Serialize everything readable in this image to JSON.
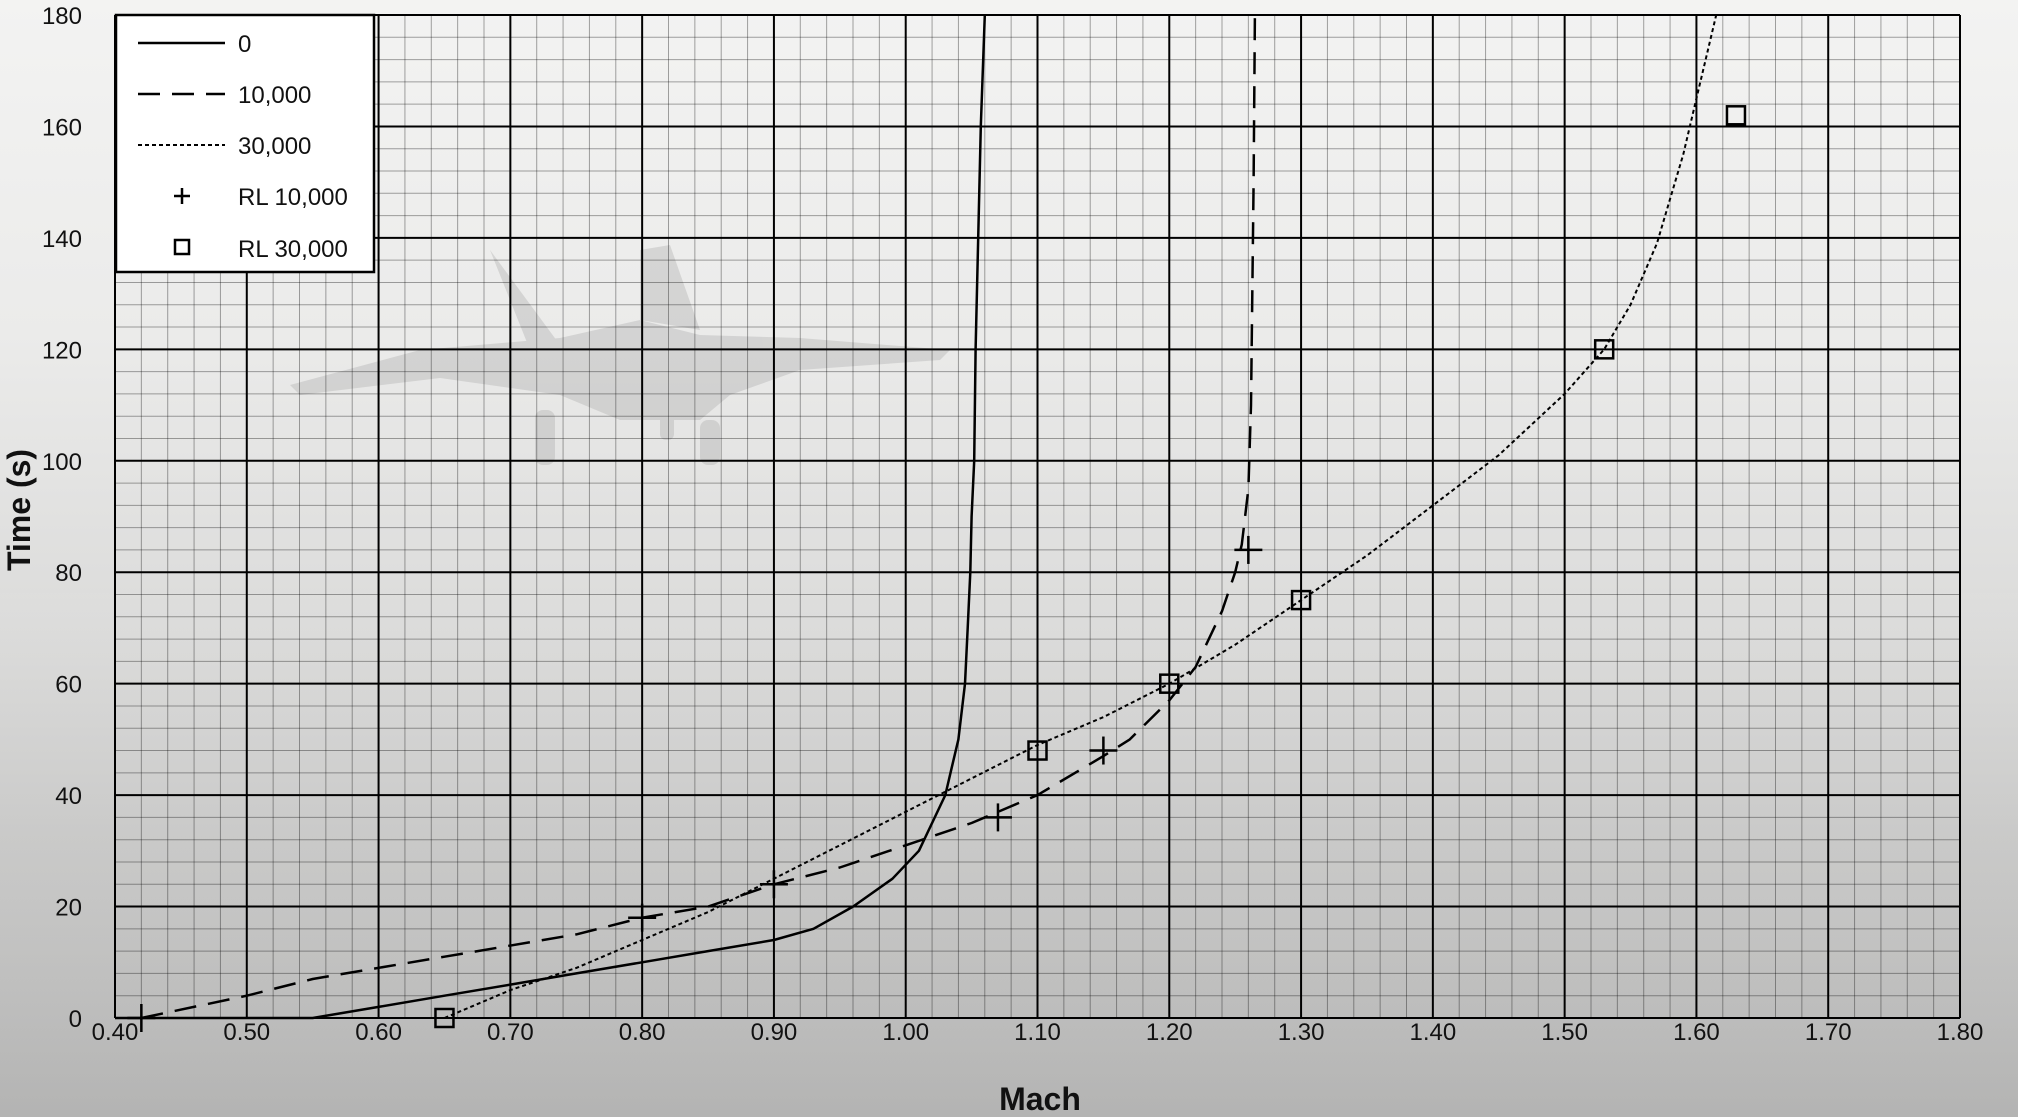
{
  "chart_data": {
    "type": "line",
    "xlabel": "Mach",
    "ylabel": "Time (s)",
    "xlim": [
      0.4,
      1.8
    ],
    "ylim": [
      0,
      180
    ],
    "x_ticks": [
      "0.40",
      "0.50",
      "0.60",
      "0.70",
      "0.80",
      "0.90",
      "1.00",
      "1.10",
      "1.20",
      "1.30",
      "1.40",
      "1.50",
      "1.60",
      "1.70",
      "1.80"
    ],
    "y_ticks": [
      "0",
      "20",
      "40",
      "60",
      "80",
      "100",
      "120",
      "140",
      "160",
      "180"
    ],
    "grid": true,
    "legend_position": "top-left",
    "background_image": "fighter-jet-photo",
    "series": [
      {
        "name": "0",
        "style": "solid",
        "points": [
          [
            0.4,
            0
          ],
          [
            0.55,
            0
          ],
          [
            0.6,
            2
          ],
          [
            0.65,
            4
          ],
          [
            0.7,
            6
          ],
          [
            0.75,
            8
          ],
          [
            0.8,
            10
          ],
          [
            0.85,
            12
          ],
          [
            0.9,
            14
          ],
          [
            0.93,
            16
          ],
          [
            0.96,
            20
          ],
          [
            0.99,
            25
          ],
          [
            1.01,
            30
          ],
          [
            1.02,
            35
          ],
          [
            1.03,
            40
          ],
          [
            1.035,
            45
          ],
          [
            1.04,
            50
          ],
          [
            1.045,
            60
          ],
          [
            1.047,
            70
          ],
          [
            1.049,
            80
          ],
          [
            1.05,
            90
          ],
          [
            1.052,
            100
          ],
          [
            1.053,
            120
          ],
          [
            1.055,
            140
          ],
          [
            1.057,
            160
          ],
          [
            1.06,
            180
          ]
        ]
      },
      {
        "name": "10,000",
        "style": "dashed",
        "points": [
          [
            0.42,
            0
          ],
          [
            0.5,
            4
          ],
          [
            0.55,
            7
          ],
          [
            0.65,
            11
          ],
          [
            0.75,
            15
          ],
          [
            0.8,
            18
          ],
          [
            0.85,
            20
          ],
          [
            0.9,
            24
          ],
          [
            0.95,
            27
          ],
          [
            1.0,
            31
          ],
          [
            1.05,
            35
          ],
          [
            1.1,
            40
          ],
          [
            1.15,
            47
          ],
          [
            1.17,
            50
          ],
          [
            1.2,
            57
          ],
          [
            1.22,
            63
          ],
          [
            1.24,
            73
          ],
          [
            1.25,
            80
          ],
          [
            1.255,
            85
          ],
          [
            1.26,
            95
          ],
          [
            1.262,
            110
          ],
          [
            1.263,
            130
          ],
          [
            1.264,
            150
          ],
          [
            1.265,
            180
          ]
        ]
      },
      {
        "name": "30,000",
        "style": "dotted",
        "points": [
          [
            0.65,
            0
          ],
          [
            0.7,
            5
          ],
          [
            0.75,
            9
          ],
          [
            0.8,
            14
          ],
          [
            0.85,
            19
          ],
          [
            0.9,
            25
          ],
          [
            0.95,
            31
          ],
          [
            1.0,
            37
          ],
          [
            1.05,
            43
          ],
          [
            1.1,
            49
          ],
          [
            1.15,
            54
          ],
          [
            1.2,
            60
          ],
          [
            1.25,
            67
          ],
          [
            1.3,
            75
          ],
          [
            1.35,
            83
          ],
          [
            1.4,
            92
          ],
          [
            1.45,
            101
          ],
          [
            1.5,
            112
          ],
          [
            1.53,
            120
          ],
          [
            1.55,
            128
          ],
          [
            1.57,
            139
          ],
          [
            1.59,
            155
          ],
          [
            1.6,
            165
          ],
          [
            1.61,
            175
          ],
          [
            1.615,
            180
          ]
        ]
      },
      {
        "name": "RL 10,000",
        "style": "marker-plus",
        "points": [
          [
            0.42,
            0
          ],
          [
            0.8,
            18
          ],
          [
            0.9,
            24
          ],
          [
            1.07,
            36
          ],
          [
            1.15,
            48
          ],
          [
            1.26,
            84
          ]
        ]
      },
      {
        "name": "RL 30,000",
        "style": "marker-square",
        "points": [
          [
            0.65,
            0
          ],
          [
            1.1,
            48
          ],
          [
            1.2,
            60
          ],
          [
            1.3,
            75
          ],
          [
            1.53,
            120
          ],
          [
            1.63,
            162
          ]
        ]
      }
    ]
  }
}
